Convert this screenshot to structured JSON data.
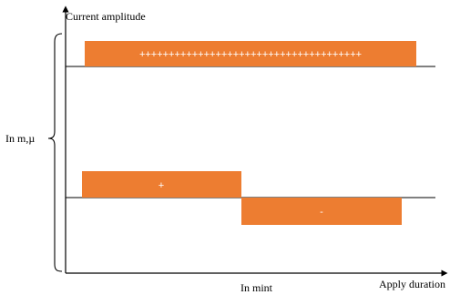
{
  "labels": {
    "y_axis": "Current amplitude",
    "x_axis": "Apply duration",
    "unit_left": "In m,µ",
    "unit_bottom": "In mint"
  },
  "waveforms": {
    "top_symbol": "++++++++++++++++++++++++++++++++++++++",
    "bottom_positive_symbol": "+",
    "bottom_negative_symbol": "-"
  },
  "colors": {
    "pulse_fill": "#ED7D31",
    "line": "#000000"
  }
}
